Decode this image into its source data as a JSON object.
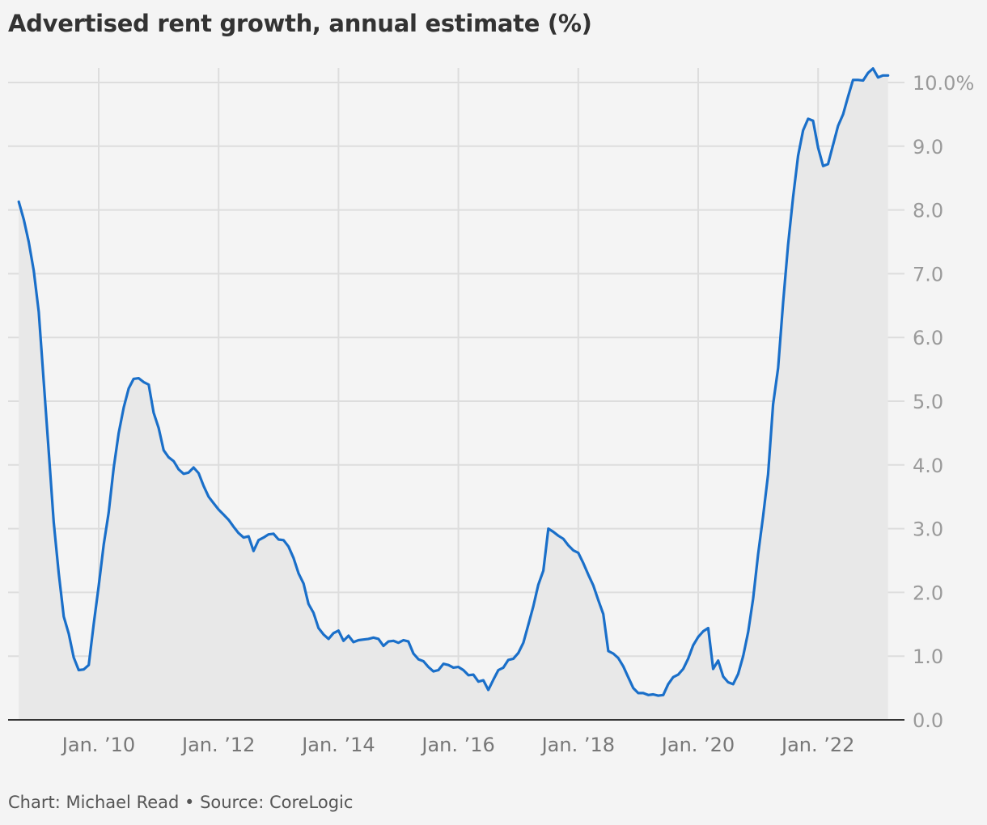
{
  "title": "Advertised rent growth, annual estimate (%)",
  "footer": "Chart: Michael Read • Source: CoreLogic",
  "colors": {
    "line": "#1a6fc9",
    "area": "#e8e8e8",
    "grid": "#dddddd",
    "axis": "#333333",
    "background": "#f4f4f4"
  },
  "chart_data": {
    "type": "area",
    "title": "Advertised rent growth, annual estimate (%)",
    "xlabel": "",
    "ylabel": "",
    "x_ticks": [
      {
        "label": "Jan. ’10",
        "date": "2010-01"
      },
      {
        "label": "Jan. ’12",
        "date": "2012-01"
      },
      {
        "label": "Jan. ’14",
        "date": "2014-01"
      },
      {
        "label": "Jan. ’16",
        "date": "2016-01"
      },
      {
        "label": "Jan. ’18",
        "date": "2018-01"
      },
      {
        "label": "Jan. ’20",
        "date": "2020-01"
      },
      {
        "label": "Jan. ’22",
        "date": "2022-01"
      }
    ],
    "y_ticks": [
      {
        "value": 0,
        "label": "0.0"
      },
      {
        "value": 1,
        "label": "1.0"
      },
      {
        "value": 2,
        "label": "2.0"
      },
      {
        "value": 3,
        "label": "3.0"
      },
      {
        "value": 4,
        "label": "4.0"
      },
      {
        "value": 5,
        "label": "5.0"
      },
      {
        "value": 6,
        "label": "6.0"
      },
      {
        "value": 7,
        "label": "7.0"
      },
      {
        "value": 8,
        "label": "8.0"
      },
      {
        "value": 9,
        "label": "9.0"
      },
      {
        "value": 10,
        "label": "10.0%"
      }
    ],
    "xlim": [
      "2008-08",
      "2023-03"
    ],
    "ylim": [
      0,
      10.3
    ],
    "grid": true,
    "series": [
      {
        "points": [
          [
            "2008-09",
            8.13
          ],
          [
            "2008-10",
            7.85
          ],
          [
            "2008-11",
            7.5
          ],
          [
            "2008-12",
            7.05
          ],
          [
            "2009-01",
            6.4
          ],
          [
            "2009-02",
            5.3
          ],
          [
            "2009-03",
            4.2
          ],
          [
            "2009-04",
            3.1
          ],
          [
            "2009-05",
            2.3
          ],
          [
            "2009-06",
            1.62
          ],
          [
            "2009-07",
            1.35
          ],
          [
            "2009-08",
            0.98
          ],
          [
            "2009-09",
            0.78
          ],
          [
            "2009-10",
            0.79
          ],
          [
            "2009-11",
            0.86
          ],
          [
            "2009-12",
            1.5
          ],
          [
            "2010-01",
            2.1
          ],
          [
            "2010-02",
            2.75
          ],
          [
            "2010-03",
            3.25
          ],
          [
            "2010-04",
            3.95
          ],
          [
            "2010-05",
            4.5
          ],
          [
            "2010-06",
            4.9
          ],
          [
            "2010-07",
            5.2
          ],
          [
            "2010-08",
            5.35
          ],
          [
            "2010-09",
            5.36
          ],
          [
            "2010-10",
            5.3
          ],
          [
            "2010-11",
            5.26
          ],
          [
            "2010-12",
            4.82
          ],
          [
            "2011-01",
            4.58
          ],
          [
            "2011-02",
            4.23
          ],
          [
            "2011-03",
            4.12
          ],
          [
            "2011-04",
            4.06
          ],
          [
            "2011-05",
            3.93
          ],
          [
            "2011-06",
            3.86
          ],
          [
            "2011-07",
            3.88
          ],
          [
            "2011-08",
            3.96
          ],
          [
            "2011-09",
            3.87
          ],
          [
            "2011-10",
            3.67
          ],
          [
            "2011-11",
            3.5
          ],
          [
            "2011-12",
            3.4
          ],
          [
            "2012-01",
            3.3
          ],
          [
            "2012-02",
            3.22
          ],
          [
            "2012-03",
            3.14
          ],
          [
            "2012-04",
            3.03
          ],
          [
            "2012-05",
            2.93
          ],
          [
            "2012-06",
            2.86
          ],
          [
            "2012-07",
            2.88
          ],
          [
            "2012-08",
            2.65
          ],
          [
            "2012-09",
            2.82
          ],
          [
            "2012-10",
            2.86
          ],
          [
            "2012-11",
            2.91
          ],
          [
            "2012-12",
            2.92
          ],
          [
            "2013-01",
            2.83
          ],
          [
            "2013-02",
            2.82
          ],
          [
            "2013-03",
            2.72
          ],
          [
            "2013-04",
            2.54
          ],
          [
            "2013-05",
            2.3
          ],
          [
            "2013-06",
            2.14
          ],
          [
            "2013-07",
            1.82
          ],
          [
            "2013-08",
            1.68
          ],
          [
            "2013-09",
            1.44
          ],
          [
            "2013-10",
            1.34
          ],
          [
            "2013-11",
            1.27
          ],
          [
            "2013-12",
            1.36
          ],
          [
            "2014-01",
            1.4
          ],
          [
            "2014-02",
            1.24
          ],
          [
            "2014-03",
            1.32
          ],
          [
            "2014-04",
            1.22
          ],
          [
            "2014-05",
            1.25
          ],
          [
            "2014-06",
            1.26
          ],
          [
            "2014-07",
            1.27
          ],
          [
            "2014-08",
            1.29
          ],
          [
            "2014-09",
            1.27
          ],
          [
            "2014-10",
            1.16
          ],
          [
            "2014-11",
            1.23
          ],
          [
            "2014-12",
            1.24
          ],
          [
            "2015-01",
            1.21
          ],
          [
            "2015-02",
            1.25
          ],
          [
            "2015-03",
            1.23
          ],
          [
            "2015-04",
            1.04
          ],
          [
            "2015-05",
            0.95
          ],
          [
            "2015-06",
            0.92
          ],
          [
            "2015-07",
            0.83
          ],
          [
            "2015-08",
            0.76
          ],
          [
            "2015-09",
            0.78
          ],
          [
            "2015-10",
            0.88
          ],
          [
            "2015-11",
            0.86
          ],
          [
            "2015-12",
            0.82
          ],
          [
            "2016-01",
            0.83
          ],
          [
            "2016-02",
            0.78
          ],
          [
            "2016-03",
            0.7
          ],
          [
            "2016-04",
            0.71
          ],
          [
            "2016-05",
            0.6
          ],
          [
            "2016-06",
            0.62
          ],
          [
            "2016-07",
            0.47
          ],
          [
            "2016-08",
            0.63
          ],
          [
            "2016-09",
            0.78
          ],
          [
            "2016-10",
            0.82
          ],
          [
            "2016-11",
            0.94
          ],
          [
            "2016-12",
            0.96
          ],
          [
            "2017-01",
            1.05
          ],
          [
            "2017-02",
            1.21
          ],
          [
            "2017-03",
            1.49
          ],
          [
            "2017-04",
            1.78
          ],
          [
            "2017-05",
            2.12
          ],
          [
            "2017-06",
            2.34
          ],
          [
            "2017-07",
            3.0
          ],
          [
            "2017-08",
            2.95
          ],
          [
            "2017-09",
            2.89
          ],
          [
            "2017-10",
            2.84
          ],
          [
            "2017-11",
            2.74
          ],
          [
            "2017-12",
            2.66
          ],
          [
            "2018-01",
            2.62
          ],
          [
            "2018-02",
            2.46
          ],
          [
            "2018-03",
            2.28
          ],
          [
            "2018-04",
            2.11
          ],
          [
            "2018-05",
            1.88
          ],
          [
            "2018-06",
            1.66
          ],
          [
            "2018-07",
            1.08
          ],
          [
            "2018-08",
            1.04
          ],
          [
            "2018-09",
            0.97
          ],
          [
            "2018-10",
            0.84
          ],
          [
            "2018-11",
            0.67
          ],
          [
            "2018-12",
            0.5
          ],
          [
            "2019-01",
            0.42
          ],
          [
            "2019-02",
            0.42
          ],
          [
            "2019-03",
            0.39
          ],
          [
            "2019-04",
            0.4
          ],
          [
            "2019-05",
            0.38
          ],
          [
            "2019-06",
            0.39
          ],
          [
            "2019-07",
            0.56
          ],
          [
            "2019-08",
            0.67
          ],
          [
            "2019-09",
            0.71
          ],
          [
            "2019-10",
            0.8
          ],
          [
            "2019-11",
            0.96
          ],
          [
            "2019-12",
            1.17
          ],
          [
            "2020-01",
            1.3
          ],
          [
            "2020-02",
            1.39
          ],
          [
            "2020-03",
            1.44
          ],
          [
            "2020-04",
            0.8
          ],
          [
            "2020-05",
            0.93
          ],
          [
            "2020-06",
            0.68
          ],
          [
            "2020-07",
            0.59
          ],
          [
            "2020-08",
            0.56
          ],
          [
            "2020-09",
            0.72
          ],
          [
            "2020-10",
            1.0
          ],
          [
            "2020-11",
            1.38
          ],
          [
            "2020-12",
            1.9
          ],
          [
            "2021-01",
            2.6
          ],
          [
            "2021-02",
            3.2
          ],
          [
            "2021-03",
            3.85
          ],
          [
            "2021-04",
            4.95
          ],
          [
            "2021-05",
            5.52
          ],
          [
            "2021-06",
            6.55
          ],
          [
            "2021-07",
            7.45
          ],
          [
            "2021-08",
            8.2
          ],
          [
            "2021-09",
            8.85
          ],
          [
            "2021-10",
            9.25
          ],
          [
            "2021-11",
            9.43
          ],
          [
            "2021-12",
            9.4
          ],
          [
            "2022-01",
            8.98
          ],
          [
            "2022-02",
            8.69
          ],
          [
            "2022-03",
            8.72
          ],
          [
            "2022-04",
            9.02
          ],
          [
            "2022-05",
            9.32
          ],
          [
            "2022-06",
            9.5
          ],
          [
            "2022-07",
            9.78
          ],
          [
            "2022-08",
            10.04
          ],
          [
            "2022-09",
            10.04
          ],
          [
            "2022-10",
            10.03
          ],
          [
            "2022-11",
            10.15
          ],
          [
            "2022-12",
            10.22
          ],
          [
            "2023-01",
            10.08
          ],
          [
            "2023-02",
            10.11
          ],
          [
            "2023-03",
            10.11
          ]
        ]
      }
    ]
  }
}
